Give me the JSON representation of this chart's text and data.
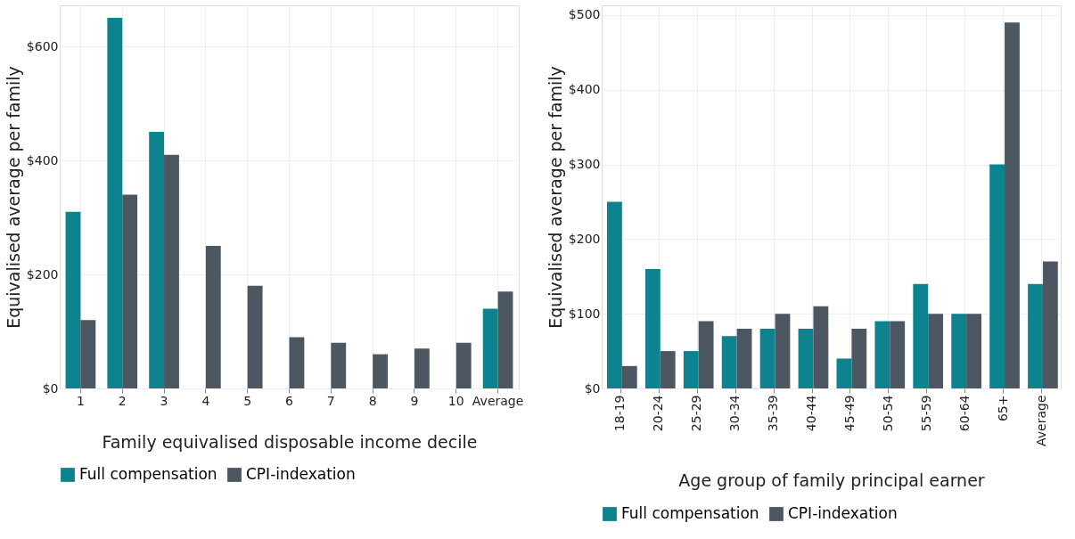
{
  "chart_data": [
    {
      "type": "bar",
      "categories": [
        "1",
        "2",
        "3",
        "4",
        "5",
        "6",
        "7",
        "8",
        "9",
        "10",
        "Average"
      ],
      "xlabel": "Family equivalised disposable income decile",
      "ylabel": "Equivalised average per family",
      "ylim": [
        0,
        672
      ],
      "yticks": [
        {
          "value": 0,
          "label": "$0"
        },
        {
          "value": 200,
          "label": "$200"
        },
        {
          "value": 400,
          "label": "$400"
        },
        {
          "value": 600,
          "label": "$600"
        }
      ],
      "grid": true,
      "legend": "bottom",
      "series": [
        {
          "name": "Full compensation",
          "color": "#0e8390",
          "values": [
            310,
            650,
            450,
            0,
            0,
            0,
            0,
            0,
            0,
            0,
            140
          ]
        },
        {
          "name": "CPI-indexation",
          "color": "#4d5761",
          "values": [
            120,
            340,
            410,
            250,
            180,
            90,
            80,
            60,
            70,
            80,
            170
          ]
        }
      ]
    },
    {
      "type": "bar",
      "categories": [
        "18-19",
        "20-24",
        "25-29",
        "30-34",
        "35-39",
        "40-44",
        "45-49",
        "50-54",
        "55-59",
        "60-64",
        "65+",
        "Average"
      ],
      "xlabel": "Age group of family principal earner",
      "ylabel": "Equivalised average per family",
      "ylim": [
        0,
        513
      ],
      "yticks": [
        {
          "value": 0,
          "label": "$0"
        },
        {
          "value": 100,
          "label": "$100"
        },
        {
          "value": 200,
          "label": "$200"
        },
        {
          "value": 300,
          "label": "$300"
        },
        {
          "value": 400,
          "label": "$400"
        },
        {
          "value": 500,
          "label": "$500"
        }
      ],
      "grid": true,
      "legend": "bottom",
      "series": [
        {
          "name": "Full compensation",
          "color": "#0e8390",
          "values": [
            250,
            160,
            50,
            70,
            80,
            80,
            40,
            90,
            140,
            100,
            300,
            140
          ]
        },
        {
          "name": "CPI-indexation",
          "color": "#4d5761",
          "values": [
            30,
            50,
            90,
            80,
            100,
            110,
            80,
            90,
            100,
            100,
            490,
            170
          ]
        }
      ]
    }
  ]
}
